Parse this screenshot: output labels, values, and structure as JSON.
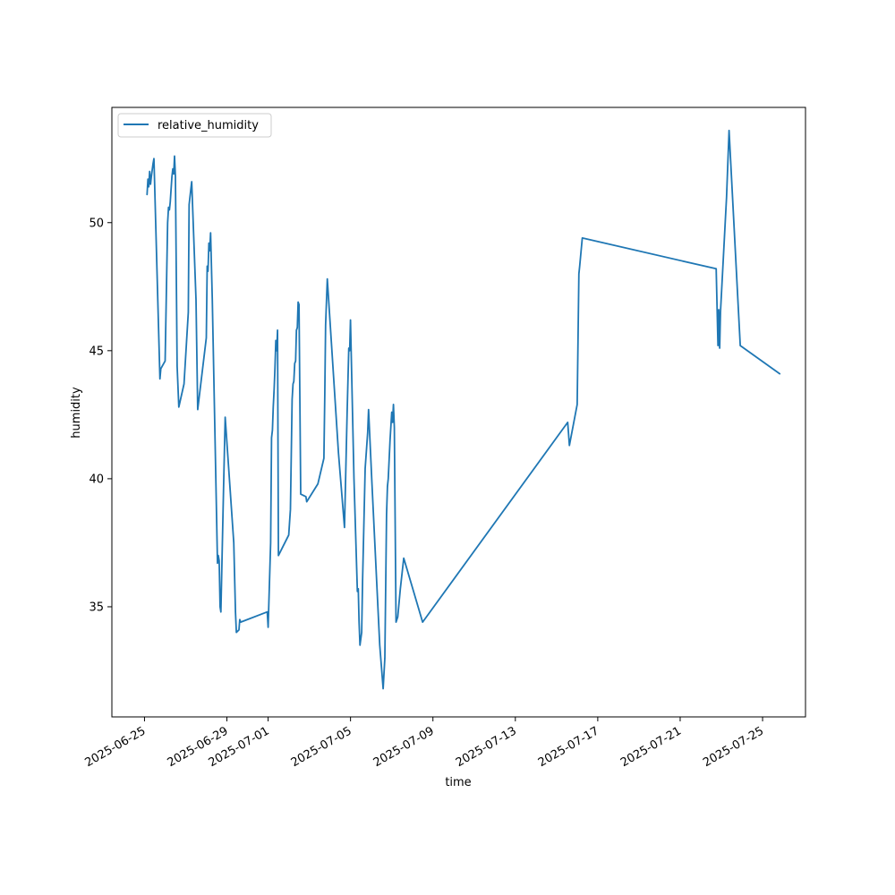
{
  "chart_data": {
    "type": "line",
    "title": "",
    "xlabel": "time",
    "ylabel": "humidity",
    "xlim": [
      "2025-06-23T10:00",
      "2025-07-27T02:00"
    ],
    "ylim": [
      30.7,
      54.5
    ],
    "x_tick_labels": [
      "2025-06-25",
      "2025-06-29",
      "2025-07-01",
      "2025-07-05",
      "2025-07-09",
      "2025-07-13",
      "2025-07-17",
      "2025-07-21",
      "2025-07-25"
    ],
    "y_ticks": [
      35,
      40,
      45,
      50
    ],
    "grid": false,
    "legend": {
      "position": "top-left",
      "entries": [
        "relative_humidity"
      ]
    },
    "colors": {
      "line": "#1f77b4",
      "axes": "#000000",
      "legend_border": "#cccccc"
    },
    "series": [
      {
        "name": "relative_humidity",
        "points": [
          [
            "2025-06-25T03:00",
            51.1
          ],
          [
            "2025-06-25T04:00",
            51.7
          ],
          [
            "2025-06-25T05:00",
            51.4
          ],
          [
            "2025-06-25T06:00",
            52.0
          ],
          [
            "2025-06-25T07:00",
            51.5
          ],
          [
            "2025-06-25T08:00",
            51.8
          ],
          [
            "2025-06-25T10:00",
            52.3
          ],
          [
            "2025-06-25T11:00",
            52.5
          ],
          [
            "2025-06-25T18:00",
            43.9
          ],
          [
            "2025-06-25T19:00",
            44.3
          ],
          [
            "2025-06-26T00:00",
            44.6
          ],
          [
            "2025-06-26T03:00",
            50.0
          ],
          [
            "2025-06-26T04:00",
            50.6
          ],
          [
            "2025-06-26T05:00",
            50.5
          ],
          [
            "2025-06-26T06:00",
            50.8
          ],
          [
            "2025-06-26T08:00",
            51.8
          ],
          [
            "2025-06-26T09:00",
            52.1
          ],
          [
            "2025-06-26T10:00",
            51.9
          ],
          [
            "2025-06-26T11:00",
            52.6
          ],
          [
            "2025-06-26T12:00",
            51.8
          ],
          [
            "2025-06-26T14:00",
            44.4
          ],
          [
            "2025-06-26T16:00",
            42.8
          ],
          [
            "2025-06-26T22:00",
            43.7
          ],
          [
            "2025-06-27T03:00",
            46.5
          ],
          [
            "2025-06-27T04:00",
            50.7
          ],
          [
            "2025-06-27T06:00",
            51.3
          ],
          [
            "2025-06-27T07:00",
            51.6
          ],
          [
            "2025-06-27T12:00",
            47.0
          ],
          [
            "2025-06-27T14:00",
            42.7
          ],
          [
            "2025-06-28T00:00",
            45.5
          ],
          [
            "2025-06-28T01:00",
            48.3
          ],
          [
            "2025-06-28T02:00",
            48.1
          ],
          [
            "2025-06-28T03:00",
            49.2
          ],
          [
            "2025-06-28T04:00",
            48.9
          ],
          [
            "2025-06-28T05:00",
            49.6
          ],
          [
            "2025-06-28T07:00",
            47.0
          ],
          [
            "2025-06-28T12:00",
            38.5
          ],
          [
            "2025-06-28T13:00",
            36.7
          ],
          [
            "2025-06-28T14:00",
            37.0
          ],
          [
            "2025-06-28T15:00",
            36.8
          ],
          [
            "2025-06-28T16:00",
            35.0
          ],
          [
            "2025-06-28T17:00",
            34.8
          ],
          [
            "2025-06-28T20:00",
            39.5
          ],
          [
            "2025-06-28T22:00",
            42.4
          ],
          [
            "2025-06-29T08:00",
            37.5
          ],
          [
            "2025-06-29T10:00",
            34.8
          ],
          [
            "2025-06-29T11:00",
            34.0
          ],
          [
            "2025-06-29T14:00",
            34.1
          ],
          [
            "2025-06-29T15:00",
            34.5
          ],
          [
            "2025-06-29T16:00",
            34.4
          ],
          [
            "2025-06-30T23:00",
            34.8
          ],
          [
            "2025-06-30T24:00",
            34.2
          ],
          [
            "2025-07-01T03:00",
            37.5
          ],
          [
            "2025-07-01T04:00",
            41.6
          ],
          [
            "2025-07-01T05:00",
            41.9
          ],
          [
            "2025-07-01T06:00",
            42.8
          ],
          [
            "2025-07-01T07:00",
            43.5
          ],
          [
            "2025-07-01T08:00",
            44.3
          ],
          [
            "2025-07-01T09:00",
            45.4
          ],
          [
            "2025-07-01T10:00",
            45.0
          ],
          [
            "2025-07-01T11:00",
            45.8
          ],
          [
            "2025-07-01T12:00",
            37.0
          ],
          [
            "2025-07-02T00:00",
            37.8
          ],
          [
            "2025-07-02T02:00",
            38.8
          ],
          [
            "2025-07-02T04:00",
            43.1
          ],
          [
            "2025-07-02T05:00",
            43.7
          ],
          [
            "2025-07-02T06:00",
            43.8
          ],
          [
            "2025-07-02T07:00",
            44.5
          ],
          [
            "2025-07-02T08:00",
            44.6
          ],
          [
            "2025-07-02T09:00",
            45.8
          ],
          [
            "2025-07-02T10:00",
            45.9
          ],
          [
            "2025-07-02T11:00",
            46.9
          ],
          [
            "2025-07-02T12:00",
            46.8
          ],
          [
            "2025-07-02T14:00",
            39.4
          ],
          [
            "2025-07-02T20:00",
            39.3
          ],
          [
            "2025-07-02T21:00",
            39.1
          ],
          [
            "2025-07-03T10:00",
            39.8
          ],
          [
            "2025-07-03T17:00",
            40.8
          ],
          [
            "2025-07-03T18:00",
            43.3
          ],
          [
            "2025-07-03T19:00",
            46.0
          ],
          [
            "2025-07-03T21:00",
            47.8
          ],
          [
            "2025-07-04T10:00",
            41.0
          ],
          [
            "2025-07-04T17:00",
            38.1
          ],
          [
            "2025-07-04T20:00",
            42.5
          ],
          [
            "2025-07-04T22:00",
            45.1
          ],
          [
            "2025-07-04T23:00",
            45.0
          ],
          [
            "2025-07-05T00:00",
            46.2
          ],
          [
            "2025-07-05T04:00",
            40.0
          ],
          [
            "2025-07-05T08:00",
            35.6
          ],
          [
            "2025-07-05T09:00",
            35.7
          ],
          [
            "2025-07-05T10:00",
            34.4
          ],
          [
            "2025-07-05T11:00",
            33.5
          ],
          [
            "2025-07-05T13:00",
            34.0
          ],
          [
            "2025-07-05T14:00",
            36.0
          ],
          [
            "2025-07-05T17:00",
            40.4
          ],
          [
            "2025-07-05T20:00",
            41.8
          ],
          [
            "2025-07-05T21:00",
            42.7
          ],
          [
            "2025-07-06T01:00",
            39.8
          ],
          [
            "2025-07-06T10:00",
            33.5
          ],
          [
            "2025-07-06T14:00",
            31.8
          ],
          [
            "2025-07-06T16:00",
            33.0
          ],
          [
            "2025-07-06T18:00",
            38.6
          ],
          [
            "2025-07-06T19:00",
            39.7
          ],
          [
            "2025-07-06T20:00",
            40.0
          ],
          [
            "2025-07-06T22:00",
            41.5
          ],
          [
            "2025-07-07T00:00",
            42.6
          ],
          [
            "2025-07-07T01:00",
            42.2
          ],
          [
            "2025-07-07T02:00",
            42.9
          ],
          [
            "2025-07-07T03:00",
            42.0
          ],
          [
            "2025-07-07T05:00",
            34.4
          ],
          [
            "2025-07-07T07:00",
            34.6
          ],
          [
            "2025-07-07T10:00",
            35.7
          ],
          [
            "2025-07-07T14:00",
            36.9
          ],
          [
            "2025-07-08T12:00",
            34.4
          ],
          [
            "2025-07-15T13:00",
            42.2
          ],
          [
            "2025-07-15T15:00",
            41.3
          ],
          [
            "2025-07-16T00:00",
            42.9
          ],
          [
            "2025-07-16T02:00",
            48.0
          ],
          [
            "2025-07-16T03:00",
            48.3
          ],
          [
            "2025-07-16T06:00",
            49.4
          ],
          [
            "2025-07-22T18:00",
            48.2
          ],
          [
            "2025-07-22T20:00",
            45.2
          ],
          [
            "2025-07-22T21:00",
            46.6
          ],
          [
            "2025-07-22T22:00",
            45.1
          ],
          [
            "2025-07-22T23:00",
            46.5
          ],
          [
            "2025-07-23T06:00",
            51.0
          ],
          [
            "2025-07-23T09:00",
            53.6
          ],
          [
            "2025-07-23T22:00",
            45.2
          ],
          [
            "2025-07-25T20:00",
            44.1
          ]
        ]
      }
    ]
  }
}
